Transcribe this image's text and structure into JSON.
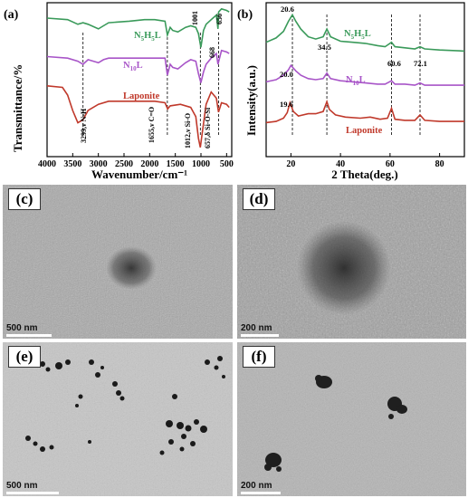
{
  "panel_a": {
    "label": "(a)",
    "ylabel": "Transmittance/%",
    "xlabel": "Wavenumber/cm⁻¹",
    "xticks": [
      "4000",
      "3500",
      "3000",
      "2500",
      "2000",
      "1500",
      "1000",
      "500"
    ],
    "series_labels": {
      "n5h5l_main": "N",
      "n5h5l_sub1": "5",
      "n5h5l_mid": "H",
      "n5h5l_sub2": "5",
      "n5h5l_end": "L",
      "n10l_main": "N",
      "n10l_sub": "10",
      "n10l_end": "L",
      "laponite": "Laponite"
    },
    "annotations": [
      "3299,ν N-H",
      "1655,ν C=O",
      "1012,ν Si-O",
      "657,δ Si-O-Si",
      "1001",
      "668",
      "656"
    ]
  },
  "panel_b": {
    "label": "(b)",
    "ylabel": "Intensity(a.u.)",
    "xlabel": "2 Theta(deg.)",
    "xticks": [
      "20",
      "40",
      "60",
      "80"
    ],
    "series_labels": {
      "n5h5l_main": "N",
      "n5h5l_sub1": "5",
      "n5h5l_mid": "H",
      "n5h5l_sub2": "5",
      "n5h5l_end": "L",
      "n10l_main": "N",
      "n10l_sub": "10",
      "n10l_end": "L",
      "laponite": "Laponite"
    },
    "peaks": [
      "20.6",
      "34.5",
      "60.6",
      "72.1",
      "20.0",
      "19.6"
    ]
  },
  "chart_data": [
    {
      "type": "line",
      "xlabel": "Wavenumber/cm⁻¹",
      "ylabel": "Transmittance/%",
      "xlim": [
        4000,
        400
      ],
      "series": [
        {
          "name": "N5H5L",
          "x": [
            4000,
            3600,
            3400,
            3300,
            3200,
            3000,
            2900,
            2800,
            2400,
            2100,
            1900,
            1700,
            1655,
            1600,
            1550,
            1450,
            1300,
            1200,
            1100,
            1050,
            1001,
            950,
            900,
            800,
            700,
            668,
            656,
            600,
            500,
            450
          ],
          "values": [
            9.0,
            8.9,
            8.6,
            8.7,
            8.6,
            8.3,
            8.5,
            8.7,
            8.8,
            8.9,
            8.9,
            8.8,
            7.9,
            8.4,
            8.2,
            8.1,
            8.4,
            8.5,
            8.4,
            8.0,
            7.1,
            8.2,
            8.6,
            8.9,
            9.2,
            8.3,
            9.4,
            9.6,
            9.5,
            9.4
          ]
        },
        {
          "name": "N10L",
          "x": [
            4000,
            3600,
            3400,
            3299,
            3200,
            3000,
            2900,
            2800,
            2400,
            2100,
            1900,
            1700,
            1655,
            1600,
            1550,
            1450,
            1300,
            1200,
            1100,
            1050,
            1001,
            950,
            900,
            800,
            700,
            668,
            600,
            500,
            450
          ],
          "values": [
            6.5,
            6.4,
            6.2,
            6.0,
            6.3,
            6.1,
            6.3,
            6.4,
            6.4,
            6.4,
            6.4,
            6.4,
            5.3,
            6.0,
            5.8,
            5.7,
            6.1,
            6.3,
            6.2,
            5.4,
            4.8,
            5.5,
            6.0,
            6.4,
            6.7,
            6.0,
            6.9,
            6.8,
            6.7
          ]
        },
        {
          "name": "Laponite",
          "x": [
            4000,
            3700,
            3600,
            3500,
            3400,
            3300,
            3200,
            3000,
            2800,
            2400,
            2100,
            1900,
            1700,
            1650,
            1600,
            1400,
            1200,
            1100,
            1050,
            1012,
            980,
            900,
            800,
            700,
            657,
            600,
            500,
            450
          ],
          "values": [
            4.6,
            4.5,
            4.0,
            3.0,
            2.2,
            2.4,
            3.0,
            3.4,
            3.6,
            3.6,
            3.6,
            3.6,
            3.5,
            3.1,
            3.3,
            3.4,
            3.2,
            2.6,
            1.2,
            0.6,
            1.4,
            3.4,
            4.2,
            3.8,
            2.9,
            3.5,
            3.4,
            3.2
          ]
        }
      ],
      "annotations": [
        {
          "x": 3299,
          "text": "3299,ν N-H"
        },
        {
          "x": 1655,
          "text": "1655,ν C=O"
        },
        {
          "x": 1012,
          "text": "1012,ν Si-O"
        },
        {
          "x": 657,
          "text": "657,δ Si-O-Si"
        },
        {
          "x": 1001,
          "text": "1001"
        },
        {
          "x": 668,
          "text": "668"
        },
        {
          "x": 656,
          "text": "656"
        }
      ]
    },
    {
      "type": "line",
      "xlabel": "2 Theta(deg.)",
      "ylabel": "Intensity(a.u.)",
      "xlim": [
        10,
        90
      ],
      "series": [
        {
          "name": "N5H5L",
          "x": [
            10,
            14,
            17,
            19,
            20.6,
            22,
            24,
            27,
            30,
            33,
            34.5,
            36,
            40,
            45,
            50,
            55,
            58,
            60.6,
            62,
            66,
            70,
            72.1,
            74,
            80,
            90
          ],
          "values": [
            10.4,
            10.8,
            11.4,
            12.3,
            12.9,
            12.3,
            11.6,
            10.9,
            10.7,
            10.9,
            11.6,
            10.9,
            10.5,
            10.4,
            10.3,
            10.1,
            10.0,
            10.4,
            10.0,
            9.9,
            9.8,
            10.0,
            9.8,
            9.7,
            9.6
          ]
        },
        {
          "name": "N10L",
          "x": [
            10,
            14,
            17,
            19,
            20.0,
            22,
            24,
            27,
            30,
            33,
            34.5,
            36,
            40,
            45,
            50,
            55,
            58,
            60.6,
            62,
            66,
            70,
            72.1,
            74,
            80,
            90
          ],
          "values": [
            6.8,
            7.0,
            7.4,
            7.9,
            8.3,
            7.8,
            7.4,
            7.1,
            7.0,
            7.1,
            7.6,
            7.1,
            6.9,
            6.8,
            6.7,
            6.6,
            6.6,
            6.9,
            6.6,
            6.6,
            6.5,
            6.7,
            6.5,
            6.5,
            6.5
          ]
        },
        {
          "name": "Laponite",
          "x": [
            10,
            14,
            17,
            18.5,
            19.6,
            21,
            23,
            27,
            30,
            33,
            34.5,
            35.5,
            38,
            42,
            48,
            52,
            56,
            59,
            60.6,
            62,
            66,
            70,
            72.1,
            74,
            80,
            90
          ],
          "values": [
            3.1,
            3.2,
            3.5,
            4.0,
            4.9,
            4.1,
            3.7,
            3.9,
            3.9,
            4.1,
            5.0,
            4.3,
            3.8,
            3.6,
            3.5,
            3.6,
            3.4,
            3.5,
            4.4,
            3.4,
            3.3,
            3.3,
            3.8,
            3.3,
            3.2,
            3.2
          ]
        }
      ],
      "peaks": [
        {
          "x": 20.6,
          "text": "20.6"
        },
        {
          "x": 34.5,
          "text": "34.5"
        },
        {
          "x": 60.6,
          "text": "60.6"
        },
        {
          "x": 72.1,
          "text": "72.1"
        },
        {
          "x": 20.0,
          "text": "20.0"
        },
        {
          "x": 19.6,
          "text": "19.6"
        }
      ]
    }
  ],
  "tem_panels": [
    {
      "label": "(c)",
      "scale": "500 nm"
    },
    {
      "label": "(d)",
      "scale": "200 nm"
    },
    {
      "label": "(e)",
      "scale": "500 nm"
    },
    {
      "label": "(f)",
      "scale": "200 nm"
    }
  ]
}
